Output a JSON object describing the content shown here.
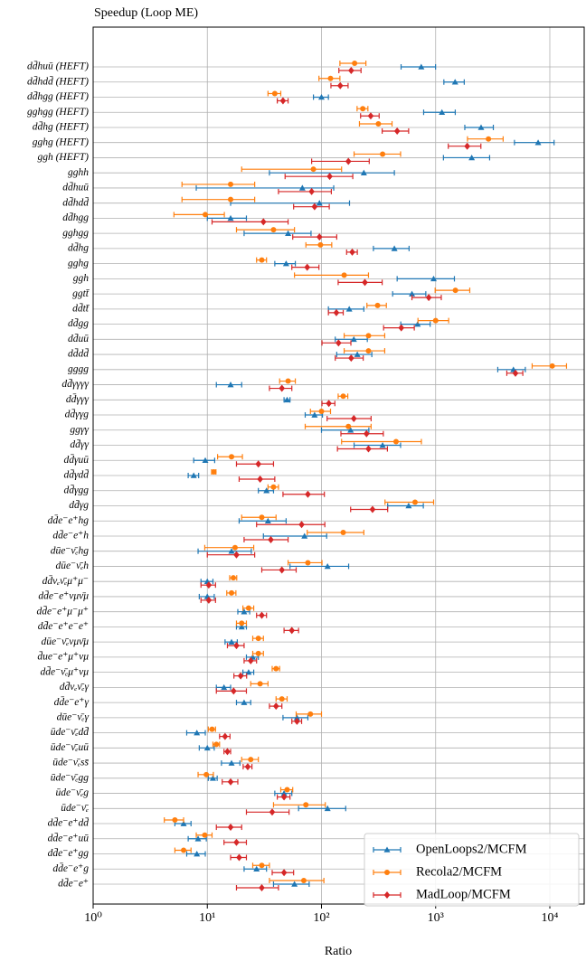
{
  "chart_data": {
    "type": "dot",
    "title": "Speedup (Loop ME)",
    "x_label": "Ratio",
    "xscale": "log",
    "xlim": [
      1,
      20000
    ],
    "xticks": [
      {
        "value": 1,
        "label": "10⁰"
      },
      {
        "value": 10,
        "label": "10¹"
      },
      {
        "value": 100,
        "label": "10²"
      },
      {
        "value": 1000,
        "label": "10³"
      },
      {
        "value": 10000,
        "label": "10⁴"
      }
    ],
    "grid": true,
    "legend": "lower right",
    "categories": [
      "dd̄huū (HEFT)",
      "dd̄hdd̄ (HEFT)",
      "dd̄hgg (HEFT)",
      "gghgg (HEFT)",
      "dd̄hg (HEFT)",
      "gghg (HEFT)",
      "ggh (HEFT)",
      "gghh",
      "dd̄huū",
      "dd̄hdd̄",
      "dd̄hgg",
      "gghgg",
      "dd̄hg",
      "gghg",
      "ggh",
      "ggtt̄",
      "dd̄tt̄",
      "dd̄gg",
      "dd̄uū",
      "dd̄dd̄",
      "gggg",
      "dd̄γγγγ",
      "dd̄γγγ",
      "dd̄γγg",
      "ggγγ",
      "dd̄γγ",
      "dd̄γuū",
      "dd̄γdd̄",
      "dd̄γgg",
      "dd̄γg",
      "dd̄e⁻e⁺hg",
      "dd̄e⁻e⁺h",
      "dūe⁻ν̄ₑhg",
      "dūe⁻ν̄ₑh",
      "dd̄νₑν̄ₑμ⁺μ⁻",
      "dd̄e⁻e⁺νμν̄μ",
      "dd̄e⁻e⁺μ⁻μ⁺",
      "dd̄e⁻e⁺e⁻e⁺",
      "dūe⁻ν̄ₑνμν̄μ",
      "d̄ue⁻e⁺μ⁺νμ",
      "dd̄e⁻ν̄ₑμ⁺νμ",
      "dd̄νₑν̄ₑγ",
      "dd̄e⁻e⁺γ",
      "dūe⁻ν̄ₑγ",
      "ūde⁻ν̄ₑdd̄",
      "ūde⁻ν̄ₑuū",
      "ūde⁻ν̄ₑss̄",
      "ūde⁻ν̄ₑgg",
      "ūde⁻ν̄ₑg",
      "ūde⁻ν̄ₑ",
      "dd̄e⁻e⁺dd̄",
      "dd̄e⁻e⁺uū",
      "dd̄e⁻e⁺gg",
      "dd̄e⁻e⁺g",
      "dd̄e⁻e⁺"
    ],
    "series": [
      {
        "name": "OpenLoops2/MCFM",
        "color": "#1f77b4",
        "marker": "triangle",
        "values": [
          748,
          1480,
          100,
          1135,
          2500,
          7900,
          2070,
          235,
          68,
          96,
          16,
          51,
          435,
          49,
          960,
          620,
          175,
          695,
          192,
          206,
          4800,
          16,
          50,
          87,
          180,
          343,
          9.6,
          7.6,
          33,
          580,
          34,
          71,
          16.3,
          113,
          10,
          10,
          21,
          20,
          16.3,
          25,
          23,
          14,
          21,
          61,
          8.1,
          10,
          16.3,
          11.2,
          47,
          113,
          6.2,
          8.3,
          8.1,
          27,
          58
        ],
        "errors": [
          250,
          300,
          15,
          350,
          700,
          3000,
          900,
          200,
          60,
          80,
          6,
          30,
          150,
          10,
          500,
          200,
          60,
          200,
          60,
          70,
          1300,
          4,
          3,
          15,
          80,
          150,
          2,
          0.8,
          5,
          200,
          15,
          40,
          8,
          60,
          1.2,
          1.5,
          2.5,
          2,
          2,
          3,
          2.5,
          2,
          3,
          15,
          1.5,
          1.5,
          3,
          1,
          8,
          50,
          1,
          1.5,
          1.5,
          6,
          20
        ]
      },
      {
        "name": "Recola2/MCFM",
        "color": "#ff7f0e",
        "marker": "circle",
        "values": [
          195,
          120,
          39,
          230,
          315,
          2900,
          343,
          85,
          16,
          16,
          9.6,
          38,
          98,
          30,
          158,
          1490,
          310,
          1000,
          258,
          258,
          10500,
          51,
          155,
          100,
          172,
          450,
          16.3,
          11.4,
          38,
          660,
          30,
          155,
          17.5,
          76,
          16.9,
          16.3,
          23,
          20,
          28,
          28,
          40,
          29,
          45,
          80,
          11,
          12,
          24,
          9.8,
          50,
          73,
          5.2,
          9.5,
          6.2,
          30,
          70
        ],
        "errors": [
          50,
          25,
          5,
          25,
          100,
          1000,
          150,
          65,
          10,
          10,
          4.5,
          20,
          25,
          3,
          100,
          500,
          60,
          300,
          100,
          100,
          3500,
          8,
          15,
          20,
          100,
          300,
          4,
          0.5,
          4,
          300,
          10,
          80,
          8,
          25,
          1.2,
          1.5,
          2.5,
          2,
          3,
          3,
          3,
          5,
          5,
          20,
          0.8,
          0.8,
          4,
          1.5,
          6,
          35,
          1,
          1.5,
          1,
          5,
          35
        ]
      },
      {
        "name": "MadLoop/MCFM",
        "color": "#d62728",
        "marker": "diamond",
        "values": [
          182,
          146,
          46,
          270,
          460,
          1890,
          172,
          118,
          82,
          87,
          31,
          96,
          186,
          75,
          240,
          870,
          135,
          500,
          141,
          182,
          5000,
          45,
          116,
          192,
          248,
          258,
          28,
          29,
          76,
          280,
          67,
          36,
          18,
          45,
          10.3,
          10.3,
          30,
          55,
          18,
          24,
          19.6,
          17,
          40,
          61,
          14.3,
          15,
          22.6,
          16,
          47,
          37,
          16,
          18,
          19,
          47,
          30
        ],
        "errors": [
          40,
          25,
          5,
          50,
          120,
          600,
          90,
          70,
          40,
          30,
          20,
          40,
          20,
          20,
          100,
          250,
          20,
          150,
          40,
          50,
          800,
          10,
          15,
          80,
          100,
          120,
          10,
          10,
          30,
          100,
          40,
          15,
          8,
          15,
          1.5,
          1.5,
          3,
          8,
          3,
          3,
          2.5,
          5,
          5,
          6,
          1.5,
          1,
          2,
          2.5,
          6,
          15,
          4,
          4,
          3,
          10,
          12
        ]
      }
    ]
  }
}
